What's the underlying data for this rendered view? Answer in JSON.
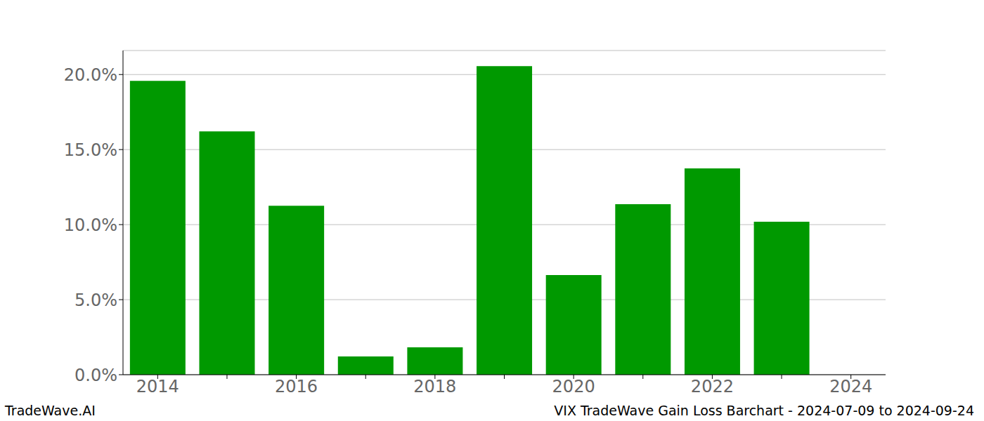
{
  "chart_data": {
    "type": "bar",
    "title": "VIX TradeWave Gain Loss Barchart - 2024-07-09 to 2024-09-24",
    "source": "TradeWave.AI",
    "categories": [
      "2014",
      null,
      "2016",
      null,
      "2018",
      null,
      "2020",
      null,
      "2022",
      null,
      "2024"
    ],
    "values": [
      19.58,
      16.21,
      11.26,
      1.21,
      1.82,
      20.56,
      6.64,
      11.36,
      13.74,
      10.19,
      null
    ],
    "color": "#009900",
    "ylim": [
      0,
      21.6
    ],
    "yticks": [
      {
        "value": 0,
        "label": "0.0%"
      },
      {
        "value": 5,
        "label": "5.0%"
      },
      {
        "value": 10,
        "label": "10.0%"
      },
      {
        "value": 15,
        "label": "15.0%"
      },
      {
        "value": 20,
        "label": "20.0%"
      }
    ],
    "grid": true
  }
}
